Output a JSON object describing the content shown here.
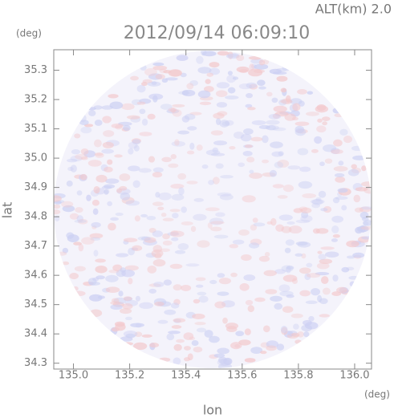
{
  "chart_data": {
    "type": "radar-image",
    "title": "2012/09/14 06:09:10",
    "altitude_label": "ALT(km) 2.0",
    "xlabel": "lon",
    "ylabel": "lat",
    "x_unit": "(deg)",
    "y_unit": "(deg)",
    "xlim": [
      134.93,
      136.06
    ],
    "ylim": [
      34.28,
      35.37
    ],
    "xticks": [
      {
        "value": 135,
        "label": "135.0"
      },
      135.2,
      135.4,
      135.6,
      135.8,
      {
        "value": 136,
        "label": "136.0"
      }
    ],
    "yticks": [
      34.3,
      34.4,
      34.5,
      34.6,
      34.7,
      34.8,
      34.9,
      {
        "value": 35,
        "label": "35.0"
      },
      35.1,
      35.2,
      35.3
    ]
  }
}
